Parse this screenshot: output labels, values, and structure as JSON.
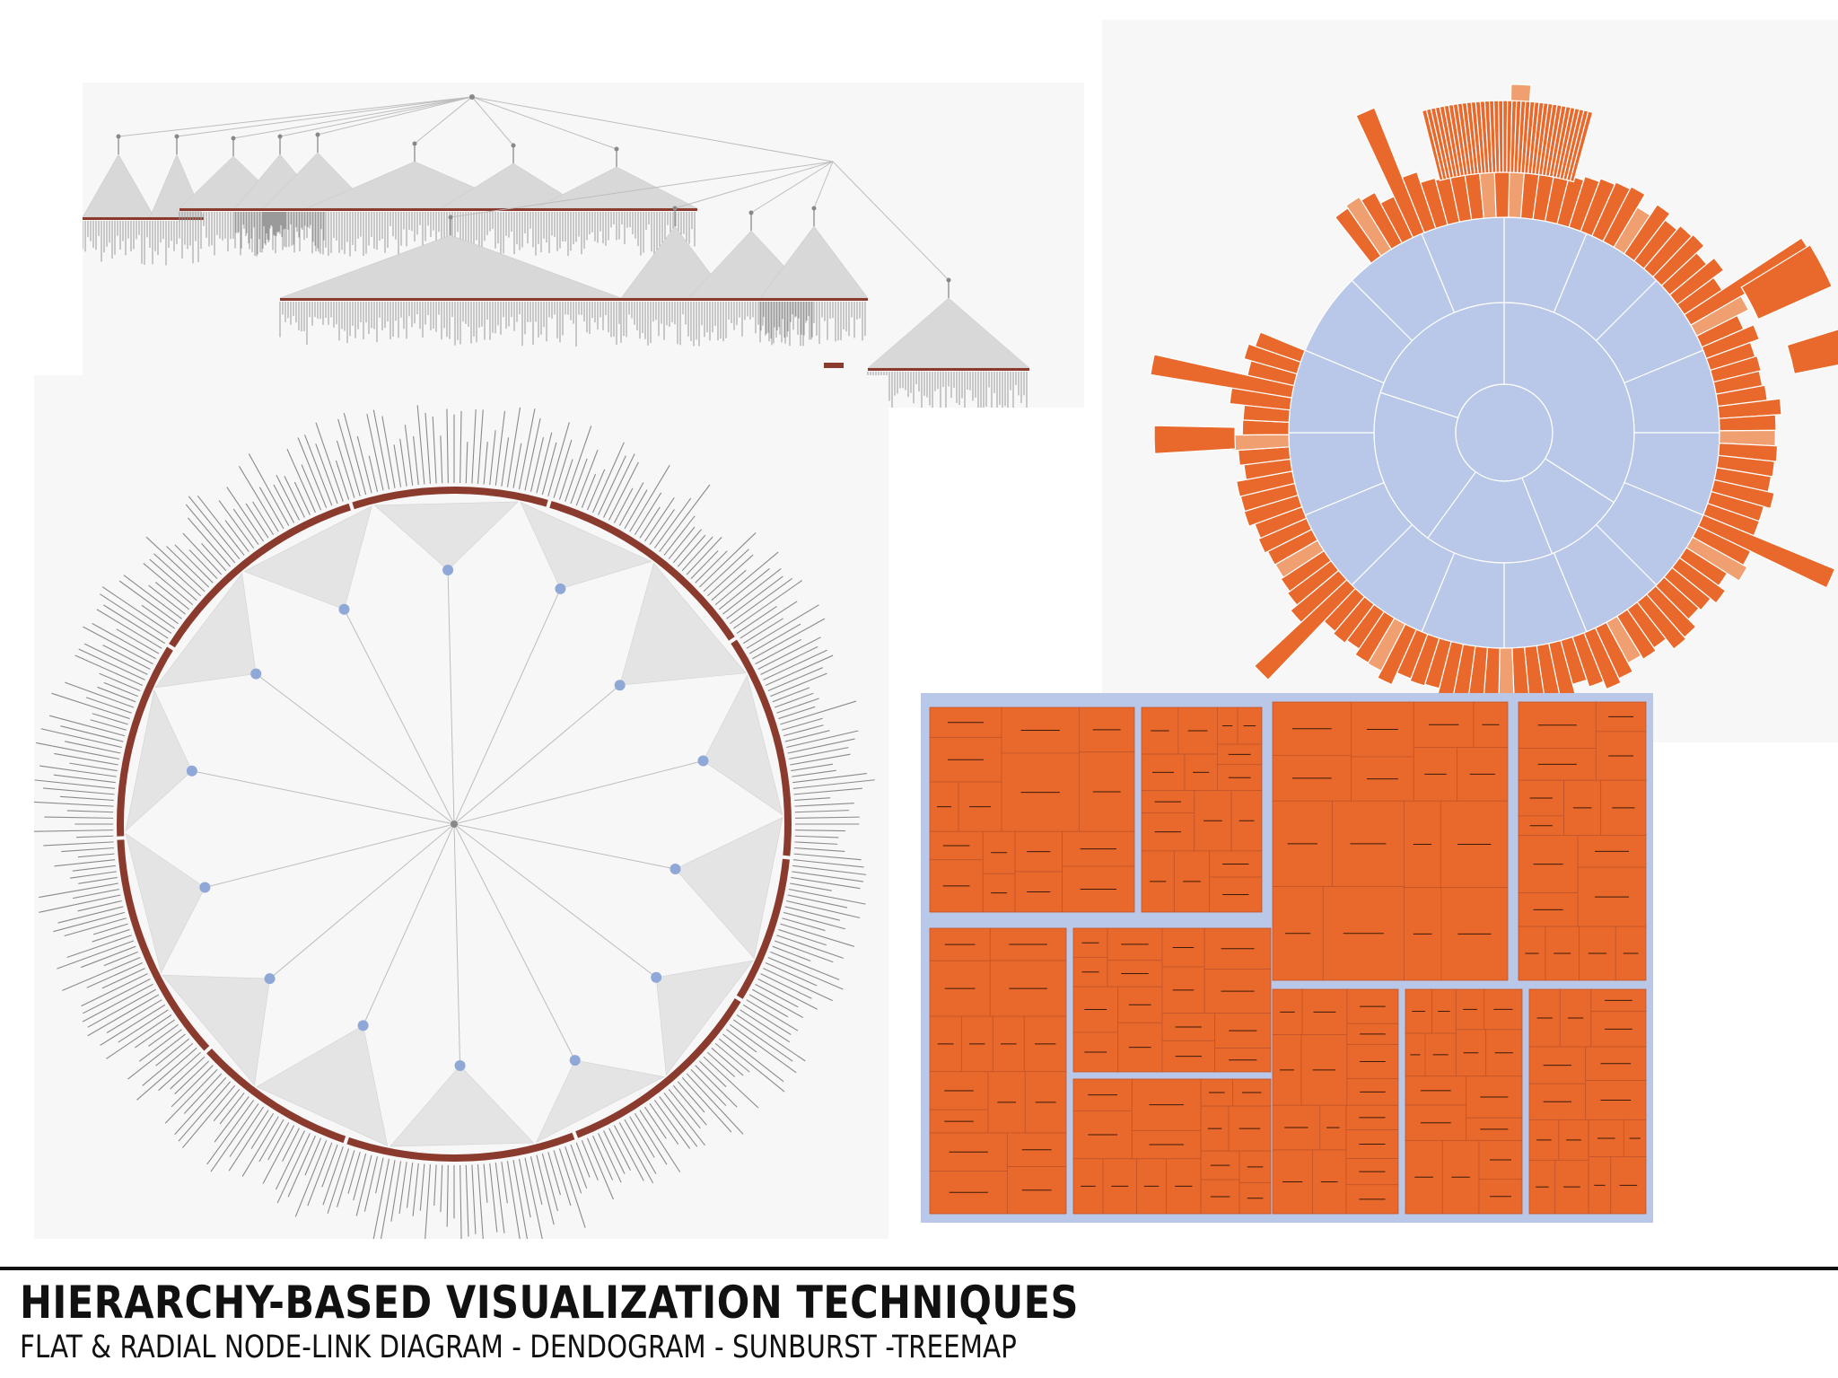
{
  "caption": {
    "title": "HIERARCHY-BASED VISUALIZATION TECHNIQUES",
    "subtitle": "FLAT & RADIAL NODE-LINK DIAGRAM - DENDOGRAM - SUNBURST -TREEMAP"
  },
  "colors": {
    "orange": "#e8692b",
    "light_blue": "#b9c8e8",
    "node_blue": "#8fa8d8",
    "brown": "#8b3a2e",
    "link_gray": "#bdbdbd",
    "text_dark": "#111111"
  },
  "panels": [
    {
      "id": "flat-node-link",
      "type": "flat node-link diagram"
    },
    {
      "id": "radial-node-link",
      "type": "radial node-link diagram"
    },
    {
      "id": "sunburst",
      "type": "sunburst"
    },
    {
      "id": "treemap",
      "type": "treemap"
    }
  ]
}
